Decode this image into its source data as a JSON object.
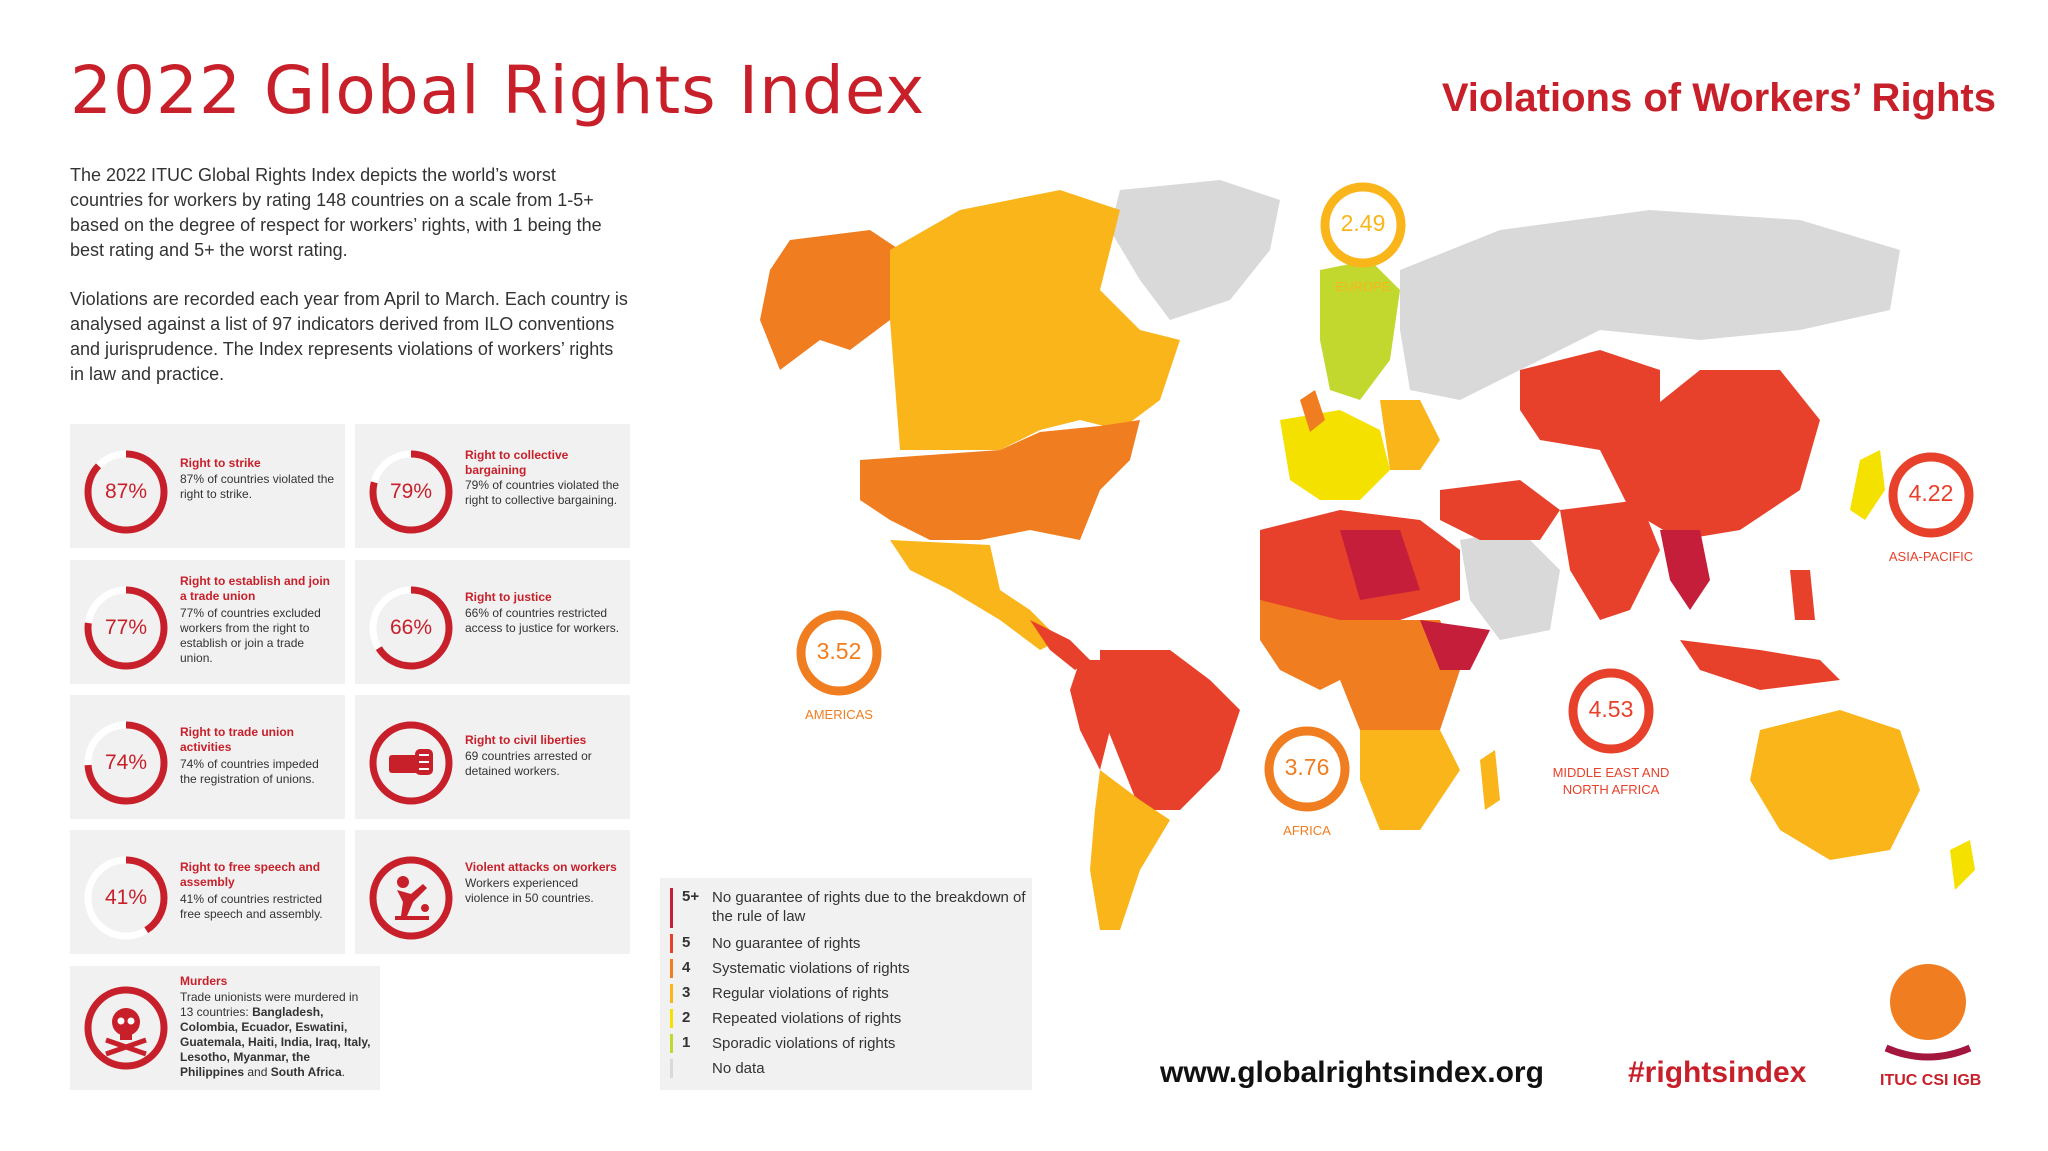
{
  "header": {
    "title": "2022 Global Rights Index",
    "subtitle": "Violations of Workers’ Rights"
  },
  "intro": {
    "p1": "The 2022 ITUC Global Rights Index depicts the world’s worst countries for workers by rating 148 countries on a scale from 1-5+ based on the degree of respect for workers’ rights, with 1 being the best rating and 5+ the worst rating.",
    "p2": "Violations are recorded each year from April to March. Each country is analysed against a list of 97 indicators derived from ILO conventions and jurisprudence. The Index represents violations of workers’ rights in law and practice."
  },
  "cards": [
    {
      "pct_label": "87%",
      "pct": 87,
      "title": "Right to strike",
      "desc": "87% of countries violated the right to strike."
    },
    {
      "pct_label": "79%",
      "pct": 79,
      "title": "Right to collective bargaining",
      "desc": "79% of countries violated the right to collective bargaining."
    },
    {
      "pct_label": "77%",
      "pct": 77,
      "title": "Right to establish and join a trade union",
      "desc": "77% of countries excluded workers from the right to establish or join a trade union."
    },
    {
      "pct_label": "66%",
      "pct": 66,
      "title": "Right to justice",
      "desc": "66% of countries restricted access to justice for workers."
    },
    {
      "pct_label": "74%",
      "pct": 74,
      "title": "Right to trade union activities",
      "desc": "74% of countries impeded the registration of unions."
    },
    {
      "icon": "fist-icon",
      "title": "Right to civil liberties",
      "desc": "69 countries arrested or detained workers."
    },
    {
      "pct_label": "41%",
      "pct": 41,
      "title": "Right to free speech and assembly",
      "desc": "41% of countries restricted free speech and assembly."
    },
    {
      "icon": "violence-icon",
      "title": "Violent attacks on workers",
      "desc": "Workers experienced violence in 50 countries."
    }
  ],
  "murders": {
    "title": "Murders",
    "intro": "Trade unionists were murdered in 13 countries:",
    "countries": "Bangladesh, Colombia, Ecuador, Eswatini, Guatemala, Haiti, India, Iraq, Italy, Lesotho, Myanmar, the Philippines",
    "and": "and",
    "last": "South Africa",
    "icon": "skull-icon"
  },
  "legend": [
    {
      "code": "5+",
      "text": "No guarantee of rights due to the breakdown of the rule of law",
      "color": "#c41e3a"
    },
    {
      "code": "5",
      "text": "No guarantee of rights",
      "color": "#e8412b"
    },
    {
      "code": "4",
      "text": "Systematic violations of rights",
      "color": "#f07d1f"
    },
    {
      "code": "3",
      "text": "Regular violations of rights",
      "color": "#f9b519"
    },
    {
      "code": "2",
      "text": "Repeated violations of rights",
      "color": "#f5e100"
    },
    {
      "code": "1",
      "text": "Sporadic violations of rights",
      "color": "#c3d82e"
    },
    {
      "code": "",
      "text": "No data",
      "color": "#d9d9d9"
    }
  ],
  "regions": [
    {
      "name": "EUROPE",
      "value": "2.49",
      "color": "#f9b519"
    },
    {
      "name": "AMERICAS",
      "value": "3.52",
      "color": "#f07d1f"
    },
    {
      "name": "AFRICA",
      "value": "3.76",
      "color": "#f07d1f"
    },
    {
      "name": "MIDDLE EAST AND NORTH AFRICA",
      "value": "4.53",
      "color": "#e8412b"
    },
    {
      "name": "ASIA-PACIFIC",
      "value": "4.22",
      "color": "#e8412b"
    }
  ],
  "footer": {
    "url": "www.globalrightsindex.org",
    "hashtag": "#rightsindex",
    "logo": "ITUC CSI IGB"
  },
  "colors": {
    "accent": "#c8202a",
    "orange": "#f07d1f",
    "nodata": "#d9d9d9"
  }
}
